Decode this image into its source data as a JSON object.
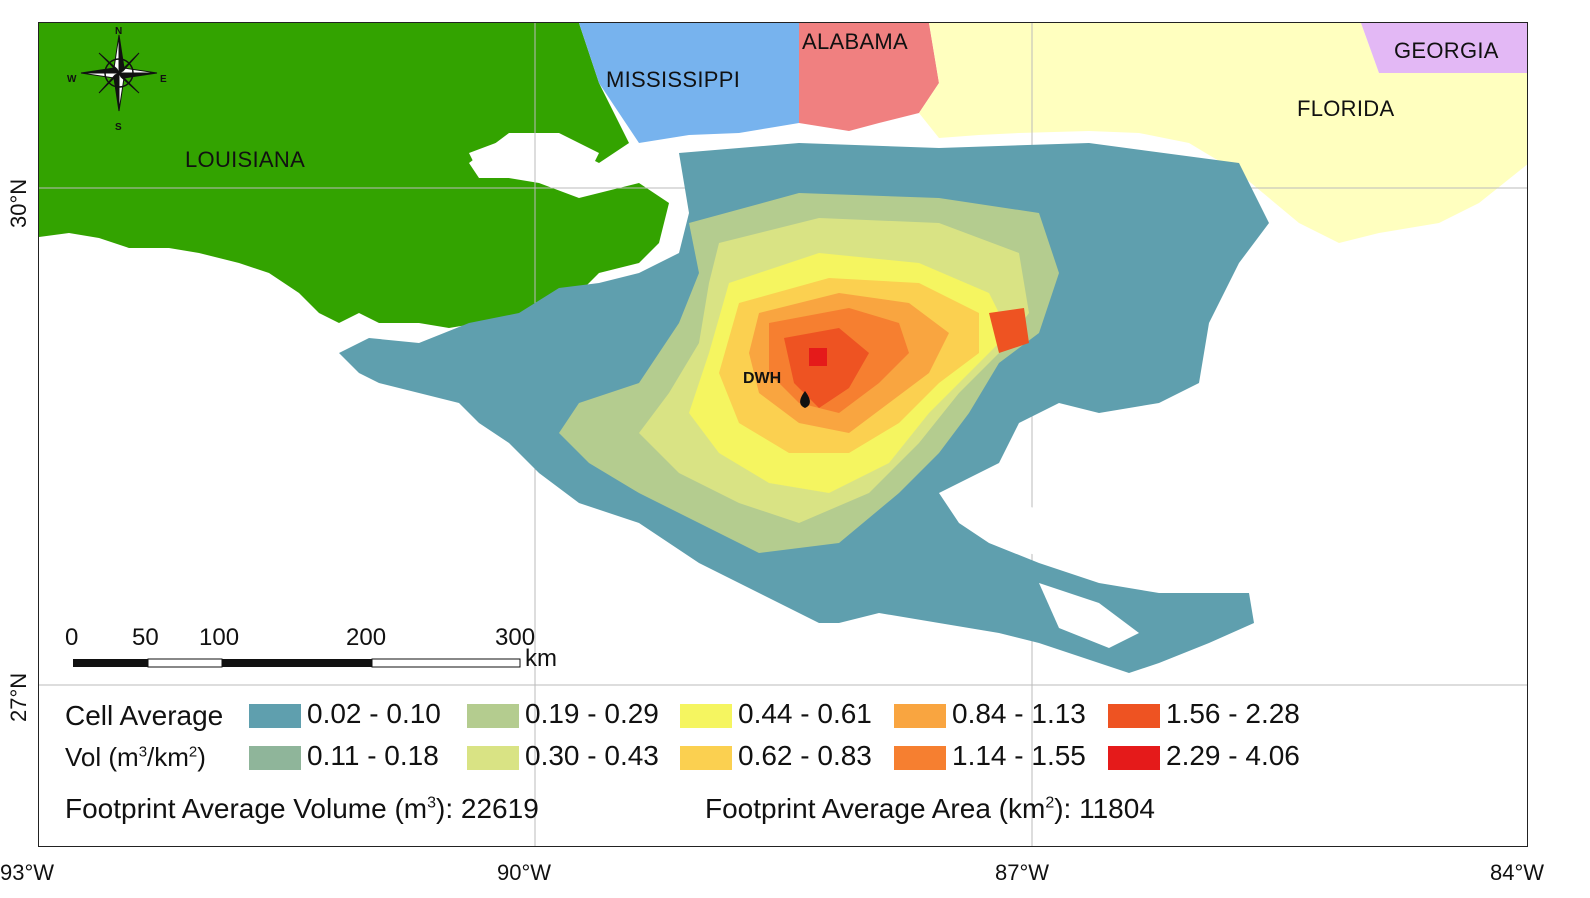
{
  "map": {
    "states": [
      {
        "id": "louisiana",
        "label": "LOUISIANA",
        "color": "#33a300"
      },
      {
        "id": "mississippi",
        "label": "MISSISSIPPI",
        "color": "#77b3ee"
      },
      {
        "id": "alabama",
        "label": "ALABAMA",
        "color": "#f08080"
      },
      {
        "id": "florida",
        "label": "FLORIDA",
        "color": "#ffffbf"
      },
      {
        "id": "georgia",
        "label": "GEORGIA",
        "color": "#e3b8f5"
      }
    ],
    "site_label": "DWH",
    "compass": {
      "n": "N",
      "s": "S",
      "e": "E",
      "w": "W",
      "icon": "compass-rose-icon"
    },
    "lon_ticks": [
      "93°W",
      "90°W",
      "87°W",
      "84°W"
    ],
    "lat_ticks": [
      "30°N",
      "27°N"
    ],
    "scale_bar": {
      "ticks": [
        "0",
        "50",
        "100",
        "200",
        "300"
      ],
      "unit": "km"
    }
  },
  "legend": {
    "title_line1": "Cell Average",
    "title_line2_prefix": "Vol (m",
    "title_line2_sup1": "3",
    "title_line2_mid": "/km",
    "title_line2_sup2": "2",
    "title_line2_suffix": ")",
    "classes": [
      {
        "range": "0.02 - 0.10",
        "color": "#5f9fae"
      },
      {
        "range": "0.11 - 0.18",
        "color": "#8fb59a"
      },
      {
        "range": "0.19 - 0.29",
        "color": "#b4cc8f"
      },
      {
        "range": "0.30 - 0.43",
        "color": "#d9e384"
      },
      {
        "range": "0.44 - 0.61",
        "color": "#f5f560"
      },
      {
        "range": "0.62 - 0.83",
        "color": "#fbd050"
      },
      {
        "range": "0.84 - 1.13",
        "color": "#f9a540"
      },
      {
        "range": "1.14 - 1.55",
        "color": "#f67f30"
      },
      {
        "range": "1.56 - 2.28",
        "color": "#ee5322"
      },
      {
        "range": "2.29 - 4.06",
        "color": "#e51a1a"
      }
    ],
    "volume_prefix": "Footprint Average Volume (m",
    "volume_sup": "3",
    "volume_suffix": "): 22619",
    "area_prefix": "Footprint Average Area (km",
    "area_sup": "2",
    "area_suffix": "): 11804"
  }
}
